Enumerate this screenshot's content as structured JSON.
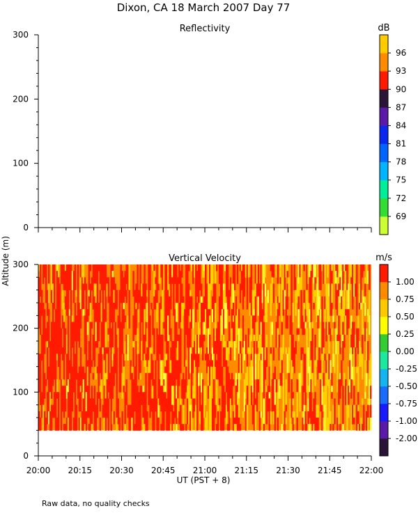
{
  "title": "Dixon, CA 18 March 2007  Day  77",
  "footnote": "Raw data, no quality checks",
  "shared_ylabel": "Altitude (m)",
  "chart_data": [
    {
      "type": "heatmap",
      "title": "Reflectivity",
      "xlabel": "UT  (PST + 8)",
      "ylabel": "Altitude (m)",
      "xlim": [
        "20:00",
        "22:00"
      ],
      "ylim": [
        0,
        300
      ],
      "x_ticks": [
        "20:00",
        "20:15",
        "20:30",
        "20:45",
        "21:00",
        "21:15",
        "21:30",
        "21:45",
        "22:00"
      ],
      "y_ticks": [
        0,
        100,
        200,
        300
      ],
      "data": [],
      "colorbar": {
        "unit": "dB",
        "labels": [
          69,
          72,
          75,
          78,
          81,
          84,
          87,
          90,
          93,
          96
        ],
        "colors": [
          "#ccff33",
          "#33dd33",
          "#00ee99",
          "#00b4ff",
          "#0066ff",
          "#0a28f0",
          "#5a1aa8",
          "#2a1438",
          "#ff1a00",
          "#ff8c00",
          "#ffcc00"
        ]
      }
    },
    {
      "type": "heatmap",
      "title": "Vertical Velocity",
      "xlabel": "UT  (PST + 8)",
      "ylabel": "Altitude (m)",
      "xlim": [
        "20:00",
        "22:00"
      ],
      "ylim": [
        0,
        300
      ],
      "data_altitude_range": [
        40,
        300
      ],
      "x_ticks": [
        "20:00",
        "20:15",
        "20:30",
        "20:45",
        "21:00",
        "21:15",
        "21:30",
        "21:45",
        "22:00"
      ],
      "y_ticks": [
        0,
        100,
        200,
        300
      ],
      "description_values": "mostly 0.75 to >1.00 m/s, strongest (red) 20:00-20:55, more 0.25-0.75 (yellow/orange) after 21:00",
      "colorbar": {
        "unit": "m/s",
        "labels": [
          "-2.00",
          "-1.00",
          "-0.75",
          "-0.50",
          "-0.25",
          "0.00",
          "0.25",
          "0.50",
          "0.75",
          "1.00"
        ],
        "colors": [
          "#2a1438",
          "#5a1aa8",
          "#1a1aff",
          "#1a6cff",
          "#14b4f0",
          "#1ee8a0",
          "#33cc33",
          "#ffff00",
          "#ffc800",
          "#ff8c00",
          "#ff1a00"
        ]
      }
    }
  ]
}
